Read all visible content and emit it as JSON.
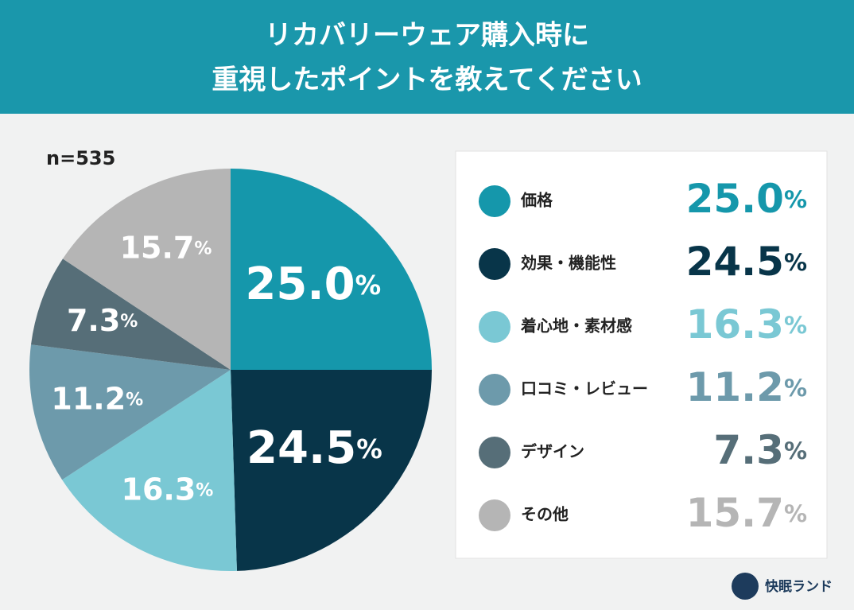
{
  "chart_data": {
    "type": "pie",
    "title": [
      "リカバリーウェア購入時に",
      "重視したポイントを教えてください"
    ],
    "annotation": "n=535",
    "categories": [
      "価格",
      "効果・機能性",
      "着心地・素材感",
      "口コミ・レビュー",
      "デザイン",
      "その他"
    ],
    "values": [
      25.0,
      24.5,
      16.3,
      11.2,
      7.3,
      15.7
    ],
    "value_labels": [
      "25.0%",
      "24.5%",
      "16.3%",
      "11.2%",
      "7.3%",
      "15.7%"
    ],
    "colors": [
      "#1597ab",
      "#083549",
      "#7ac8d4",
      "#6d9aab",
      "#566e78",
      "#b5b5b5"
    ]
  },
  "footer": {
    "brand": "快眠ランド"
  }
}
